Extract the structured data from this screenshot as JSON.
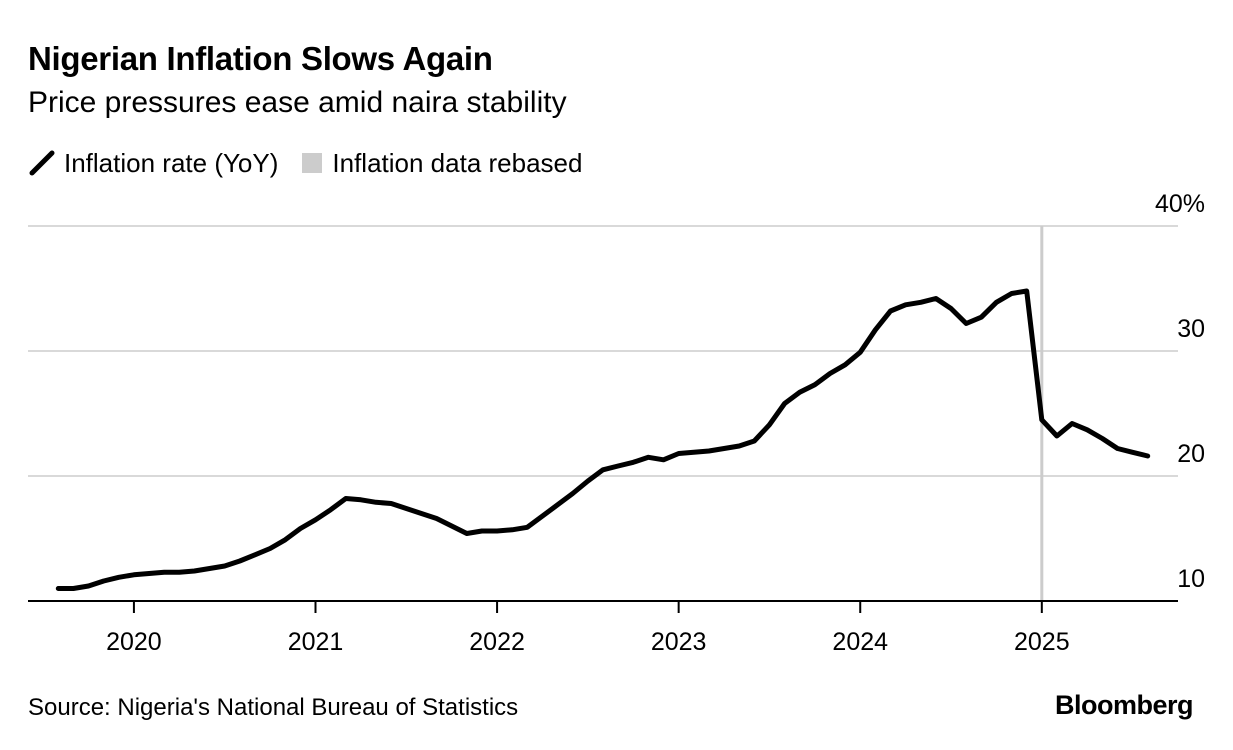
{
  "colors": {
    "line": "#000000",
    "grid": "#d9d9d9",
    "rebase": "#cccccc",
    "axis": "#000000",
    "text": "#000000"
  },
  "legend": {
    "line_icon": "diagonal-line-icon",
    "rect_icon": "gray-square-icon"
  },
  "footer": {
    "source": "Source: Nigeria's National Bureau of Statistics",
    "brand": "Bloomberg"
  },
  "chart_data": {
    "type": "line",
    "title": "Nigerian Inflation Slows Again",
    "subtitle": "Price pressures ease amid naira stability",
    "xlabel": "",
    "ylabel": "",
    "ylim": [
      10,
      40
    ],
    "xlim": [
      "2019-06",
      "2025-10"
    ],
    "y_ticks": [
      {
        "value": 40,
        "label": "40%"
      },
      {
        "value": 30,
        "label": "30"
      },
      {
        "value": 20,
        "label": "20"
      },
      {
        "value": 10,
        "label": "10"
      }
    ],
    "x_ticks": [
      {
        "date": "2020-01",
        "label": "2020"
      },
      {
        "date": "2021-01",
        "label": "2021"
      },
      {
        "date": "2022-01",
        "label": "2022"
      },
      {
        "date": "2023-01",
        "label": "2023"
      },
      {
        "date": "2024-01",
        "label": "2024"
      },
      {
        "date": "2025-01",
        "label": "2025"
      }
    ],
    "grid": true,
    "legend_position": "top-left",
    "rebase": {
      "date": "2025-01",
      "label": "Inflation data rebased"
    },
    "series": [
      {
        "name": "Inflation rate (YoY)",
        "x": [
          "2019-08",
          "2019-09",
          "2019-10",
          "2019-11",
          "2019-12",
          "2020-01",
          "2020-02",
          "2020-03",
          "2020-04",
          "2020-05",
          "2020-06",
          "2020-07",
          "2020-08",
          "2020-09",
          "2020-10",
          "2020-11",
          "2020-12",
          "2021-01",
          "2021-02",
          "2021-03",
          "2021-04",
          "2021-05",
          "2021-06",
          "2021-07",
          "2021-08",
          "2021-09",
          "2021-10",
          "2021-11",
          "2021-12",
          "2022-01",
          "2022-02",
          "2022-03",
          "2022-04",
          "2022-05",
          "2022-06",
          "2022-07",
          "2022-08",
          "2022-09",
          "2022-10",
          "2022-11",
          "2022-12",
          "2023-01",
          "2023-02",
          "2023-03",
          "2023-04",
          "2023-05",
          "2023-06",
          "2023-07",
          "2023-08",
          "2023-09",
          "2023-10",
          "2023-11",
          "2023-12",
          "2024-01",
          "2024-02",
          "2024-03",
          "2024-04",
          "2024-05",
          "2024-06",
          "2024-07",
          "2024-08",
          "2024-09",
          "2024-10",
          "2024-11",
          "2024-12",
          "2025-01",
          "2025-02",
          "2025-03",
          "2025-04",
          "2025-05",
          "2025-06",
          "2025-07",
          "2025-08"
        ],
        "values": [
          11.0,
          11.0,
          11.2,
          11.6,
          11.9,
          12.1,
          12.2,
          12.3,
          12.3,
          12.4,
          12.6,
          12.8,
          13.2,
          13.7,
          14.2,
          14.9,
          15.8,
          16.5,
          17.3,
          18.2,
          18.1,
          17.9,
          17.8,
          17.4,
          17.0,
          16.6,
          16.0,
          15.4,
          15.6,
          15.6,
          15.7,
          15.9,
          16.8,
          17.7,
          18.6,
          19.6,
          20.5,
          20.8,
          21.1,
          21.5,
          21.3,
          21.8,
          21.9,
          22.0,
          22.2,
          22.4,
          22.8,
          24.1,
          25.8,
          26.7,
          27.3,
          28.2,
          28.9,
          29.9,
          31.7,
          33.2,
          33.7,
          33.9,
          34.2,
          33.4,
          32.2,
          32.7,
          33.9,
          34.6,
          34.8,
          24.5,
          23.2,
          24.2,
          23.7,
          23.0,
          22.2,
          21.9,
          21.6
        ]
      }
    ]
  }
}
